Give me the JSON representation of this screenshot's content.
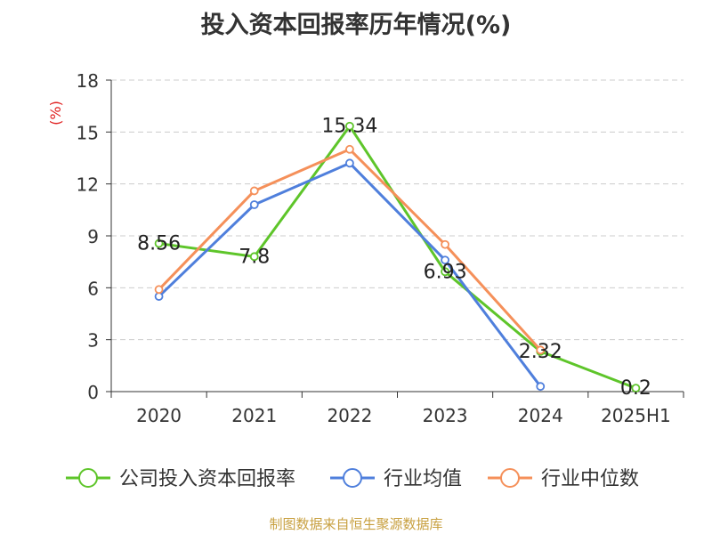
{
  "chart_data": {
    "type": "line",
    "title": "投入资本回报率历年情况(%)",
    "ylabel": "(%)",
    "xlabel": "",
    "categories": [
      "2020",
      "2021",
      "2022",
      "2023",
      "2024",
      "2025H1"
    ],
    "ylim": [
      0,
      18
    ],
    "yticks": [
      0,
      3,
      6,
      9,
      12,
      15,
      18
    ],
    "grid": true,
    "legend_position": "bottom",
    "series": [
      {
        "name": "公司投入资本回报率",
        "color": "#5ec52a",
        "values": [
          8.56,
          7.8,
          15.34,
          6.93,
          2.32,
          0.2
        ],
        "labels": [
          "8.56",
          "7.8",
          "15.34",
          "6.93",
          "2.32",
          "0.2"
        ]
      },
      {
        "name": "行业均值",
        "color": "#4f7fdc",
        "values": [
          5.5,
          10.8,
          13.2,
          7.6,
          0.3,
          null
        ]
      },
      {
        "name": "行业中位数",
        "color": "#f5905a",
        "values": [
          5.9,
          11.6,
          14.0,
          8.5,
          2.4,
          null
        ]
      }
    ]
  },
  "source": "制图数据来自恒生聚源数据库"
}
